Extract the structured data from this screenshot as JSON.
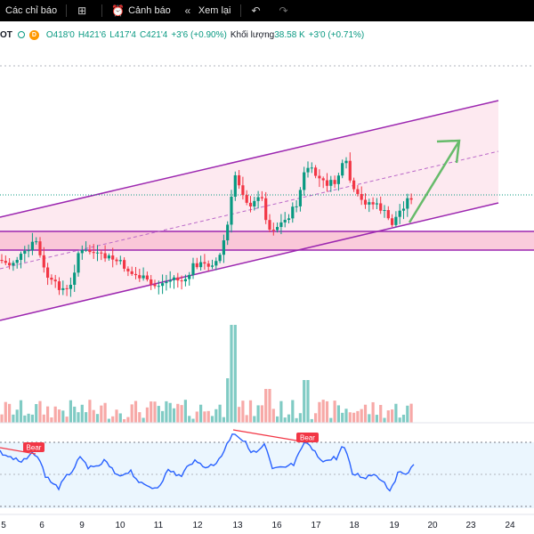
{
  "toolbar": {
    "indicators_label": "Các chỉ báo",
    "alerts_label": "Cảnh báo",
    "replay_label": "Xem lại",
    "icons": [
      "grid-icon",
      "alarm-clock-icon",
      "replay-icon",
      "undo-icon",
      "redo-icon"
    ]
  },
  "legend": {
    "symbol": "OT",
    "status_badge": "D",
    "open": "O418'0",
    "high": "H421'6",
    "low": "L417'4",
    "close": "C421'4",
    "change": "+3'6 (+0.90%)",
    "volume_label": "Khối lượng",
    "volume_value": "38.58 K",
    "volume_change": "+3'0 (+0.71%)"
  },
  "colors": {
    "up": "#089981",
    "down": "#f23645",
    "channel": "#9c27b0",
    "channel_fill": "#fce4ec",
    "zone_fill": "#f8bbd0",
    "arrow": "#66bb6a",
    "rsi_line": "#2962ff",
    "rsi_bg": "#e3f2fd",
    "bear": "#f23645"
  },
  "x_axis": {
    "labels": [
      "5",
      "6",
      "9",
      "10",
      "11",
      "12",
      "13",
      "16",
      "17",
      "18",
      "19",
      "20",
      "23",
      "24"
    ]
  },
  "annotations": {
    "bear_labels": [
      "Bear",
      "Bear"
    ]
  }
}
